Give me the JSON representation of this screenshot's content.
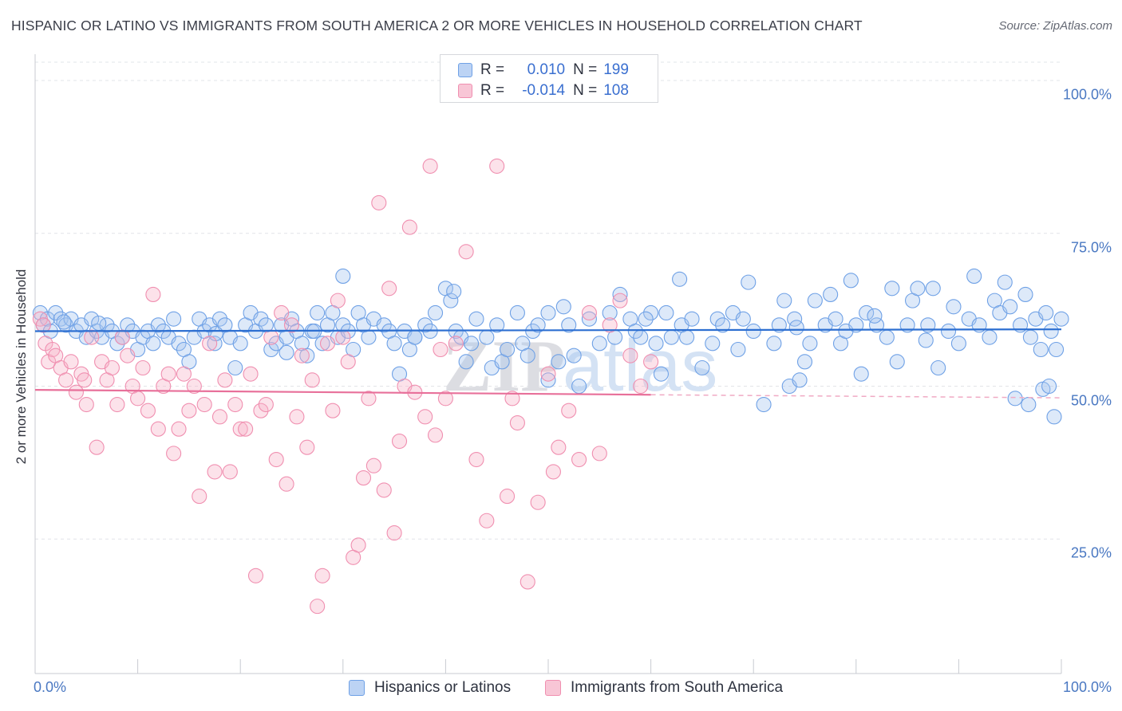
{
  "title": "HISPANIC OR LATINO VS IMMIGRANTS FROM SOUTH AMERICA 2 OR MORE VEHICLES IN HOUSEHOLD CORRELATION CHART",
  "source": "Source: ZipAtlas.com",
  "watermark": "ZIPatlas",
  "legend": {
    "rows": [
      {
        "r_label": "R =",
        "r_value": "0.010",
        "n_label": "N =",
        "n_value": "199",
        "color": "#6fa1e6"
      },
      {
        "r_label": "R =",
        "r_value": "-0.014",
        "n_label": "N =",
        "n_value": "108",
        "color": "#f08fb0"
      }
    ]
  },
  "bottom_legend": [
    "Hispanics or Latinos",
    "Immigrants from South America"
  ],
  "chart_data": {
    "type": "scatter",
    "title": "HISPANIC OR LATINO VS IMMIGRANTS FROM SOUTH AMERICA 2 OR MORE VEHICLES IN HOUSEHOLD CORRELATION CHART",
    "xlabel": "",
    "ylabel": "2 or more Vehicles in Household",
    "xlim": [
      0,
      100
    ],
    "ylim": [
      3,
      103
    ],
    "x_tick_labels": [
      "0.0%",
      "100.0%"
    ],
    "y_tick_labels": [
      "100.0%",
      "75.0%",
      "50.0%",
      "25.0%"
    ],
    "y_ticks": [
      100,
      75,
      50,
      25
    ],
    "grid": "horizontal dashed",
    "legend_position": "top-center",
    "series": [
      {
        "name": "Hispanics or Latinos",
        "color": "#6fa1e6",
        "trend": {
          "x0": 0,
          "y0": 59.0,
          "x1": 100,
          "y1": 59.3,
          "dashed_from": null
        },
        "points": [
          [
            0.5,
            62
          ],
          [
            0.8,
            60
          ],
          [
            1.2,
            61
          ],
          [
            1.5,
            59
          ],
          [
            2.0,
            62
          ],
          [
            2.5,
            61
          ],
          [
            3,
            60
          ],
          [
            3.5,
            61
          ],
          [
            4,
            59
          ],
          [
            4.5,
            60
          ],
          [
            5,
            58
          ],
          [
            5.5,
            61
          ],
          [
            6,
            59
          ],
          [
            6.5,
            58
          ],
          [
            7,
            60
          ],
          [
            7.5,
            59
          ],
          [
            8,
            57
          ],
          [
            8.5,
            58
          ],
          [
            9,
            60
          ],
          [
            9.5,
            59
          ],
          [
            10,
            56
          ],
          [
            10.5,
            58
          ],
          [
            11,
            59
          ],
          [
            11.5,
            57
          ],
          [
            12,
            60
          ],
          [
            12.5,
            59
          ],
          [
            13,
            58
          ],
          [
            13.5,
            61
          ],
          [
            14,
            57
          ],
          [
            14.5,
            56
          ],
          [
            15,
            54
          ],
          [
            15.5,
            58
          ],
          [
            16,
            61
          ],
          [
            16.5,
            59
          ],
          [
            17,
            60
          ],
          [
            17.5,
            57
          ],
          [
            18,
            61
          ],
          [
            18.5,
            60
          ],
          [
            19,
            58
          ],
          [
            19.5,
            53
          ],
          [
            20,
            57
          ],
          [
            20.5,
            60
          ],
          [
            21,
            62
          ],
          [
            21.5,
            59
          ],
          [
            22,
            61
          ],
          [
            22.5,
            60
          ],
          [
            23,
            56
          ],
          [
            23.5,
            57
          ],
          [
            24,
            60
          ],
          [
            24.5,
            58
          ],
          [
            25,
            61
          ],
          [
            25.5,
            59
          ],
          [
            26,
            57
          ],
          [
            26.5,
            55
          ],
          [
            27,
            59
          ],
          [
            27.5,
            62
          ],
          [
            28,
            57
          ],
          [
            28.5,
            60
          ],
          [
            29,
            62
          ],
          [
            29.5,
            58
          ],
          [
            30,
            60
          ],
          [
            30.5,
            59
          ],
          [
            31,
            56
          ],
          [
            31.5,
            62
          ],
          [
            32,
            60
          ],
          [
            32.5,
            58
          ],
          [
            33,
            61
          ],
          [
            34,
            60
          ],
          [
            34.5,
            59
          ],
          [
            35,
            57
          ],
          [
            35.5,
            52
          ],
          [
            36,
            59
          ],
          [
            36.5,
            56
          ],
          [
            37,
            58
          ],
          [
            38,
            60
          ],
          [
            38.5,
            59
          ],
          [
            39,
            62
          ],
          [
            40,
            66
          ],
          [
            40.5,
            64
          ],
          [
            41,
            59
          ],
          [
            41.5,
            58
          ],
          [
            42,
            54
          ],
          [
            42.5,
            57
          ],
          [
            43,
            61
          ],
          [
            44,
            58
          ],
          [
            44.5,
            53
          ],
          [
            45,
            60
          ],
          [
            45.5,
            54
          ],
          [
            46,
            56
          ],
          [
            47,
            62
          ],
          [
            47.5,
            57
          ],
          [
            48,
            55
          ],
          [
            48.5,
            59
          ],
          [
            49,
            60
          ],
          [
            50,
            62
          ],
          [
            51,
            54
          ],
          [
            51.5,
            63
          ],
          [
            52,
            60
          ],
          [
            52.5,
            55
          ],
          [
            53,
            50
          ],
          [
            54,
            61
          ],
          [
            55,
            57
          ],
          [
            56,
            62
          ],
          [
            56.5,
            58
          ],
          [
            57,
            65
          ],
          [
            58,
            61
          ],
          [
            58.5,
            59
          ],
          [
            59,
            58
          ],
          [
            60,
            62
          ],
          [
            60.5,
            57
          ],
          [
            61,
            52
          ],
          [
            61.5,
            62
          ],
          [
            62,
            58
          ],
          [
            63,
            60
          ],
          [
            63.5,
            58
          ],
          [
            64,
            61
          ],
          [
            65,
            53
          ],
          [
            66,
            57
          ],
          [
            66.5,
            61
          ],
          [
            67,
            60
          ],
          [
            68,
            62
          ],
          [
            68.5,
            56
          ],
          [
            69,
            61
          ],
          [
            70,
            59
          ],
          [
            71,
            47
          ],
          [
            72,
            57
          ],
          [
            72.5,
            60
          ],
          [
            73,
            64
          ],
          [
            73.5,
            50
          ],
          [
            74,
            61
          ],
          [
            74.5,
            51
          ],
          [
            75,
            54
          ],
          [
            75.5,
            57
          ],
          [
            76,
            64
          ],
          [
            77,
            60
          ],
          [
            77.5,
            65
          ],
          [
            78,
            61
          ],
          [
            78.5,
            57
          ],
          [
            79,
            59
          ],
          [
            80,
            60
          ],
          [
            80.5,
            52
          ],
          [
            81,
            62
          ],
          [
            82,
            60
          ],
          [
            83,
            58
          ],
          [
            83.5,
            66
          ],
          [
            84,
            54
          ],
          [
            85,
            60
          ],
          [
            85.5,
            64
          ],
          [
            86,
            66
          ],
          [
            87,
            60
          ],
          [
            87.5,
            66
          ],
          [
            88,
            53
          ],
          [
            89,
            59
          ],
          [
            89.5,
            63
          ],
          [
            90,
            57
          ],
          [
            91,
            61
          ],
          [
            91.5,
            68
          ],
          [
            92,
            60
          ],
          [
            93,
            58
          ],
          [
            93.5,
            64
          ],
          [
            94,
            62
          ],
          [
            94.5,
            67
          ],
          [
            95,
            63
          ],
          [
            96,
            60
          ],
          [
            96.5,
            65
          ],
          [
            97,
            58
          ],
          [
            97.5,
            61
          ],
          [
            98,
            56
          ],
          [
            98.5,
            62
          ],
          [
            99,
            59
          ],
          [
            99.5,
            56
          ],
          [
            100,
            61
          ],
          [
            50,
            51
          ],
          [
            30,
            68
          ],
          [
            37,
            58
          ],
          [
            40.8,
            65.5
          ],
          [
            62.8,
            67.5
          ],
          [
            69.5,
            67
          ],
          [
            79.5,
            67.3
          ],
          [
            86.8,
            57.5
          ],
          [
            95.5,
            48
          ],
          [
            96.8,
            47
          ],
          [
            98.2,
            49.5
          ],
          [
            98.8,
            50
          ],
          [
            99.3,
            45
          ],
          [
            74.2,
            59.6
          ],
          [
            81.8,
            61.5
          ],
          [
            27.2,
            59
          ],
          [
            24.5,
            55.5
          ],
          [
            59.5,
            61
          ],
          [
            17.6,
            58.6
          ],
          [
            2.8,
            60.5
          ],
          [
            6.2,
            60.3
          ]
        ]
      },
      {
        "name": "Immigrants from South America",
        "color": "#f08fb0",
        "trend": {
          "x0": 0,
          "y0": 49.4,
          "x1": 60,
          "y1": 48.6,
          "dashed_from": 60,
          "dashed_to_x": 100,
          "dashed_to_y": 48.1
        },
        "points": [
          [
            0.5,
            61
          ],
          [
            0.8,
            60
          ],
          [
            1,
            57
          ],
          [
            1.3,
            54
          ],
          [
            1.7,
            56
          ],
          [
            2,
            55
          ],
          [
            2.5,
            53
          ],
          [
            3,
            51
          ],
          [
            3.5,
            54
          ],
          [
            4,
            49
          ],
          [
            4.5,
            52
          ],
          [
            4.8,
            51
          ],
          [
            5,
            47
          ],
          [
            5.5,
            58
          ],
          [
            6,
            40
          ],
          [
            6.5,
            54
          ],
          [
            7,
            51
          ],
          [
            7.5,
            53
          ],
          [
            8,
            47
          ],
          [
            8.5,
            58
          ],
          [
            9,
            55
          ],
          [
            9.5,
            50
          ],
          [
            10,
            48
          ],
          [
            10.5,
            53
          ],
          [
            11,
            46
          ],
          [
            11.5,
            65
          ],
          [
            12,
            43
          ],
          [
            12.5,
            50
          ],
          [
            13,
            52
          ],
          [
            13.5,
            39
          ],
          [
            14,
            43
          ],
          [
            14.5,
            52
          ],
          [
            15,
            46
          ],
          [
            15.5,
            50
          ],
          [
            16,
            32
          ],
          [
            16.5,
            47
          ],
          [
            17,
            57
          ],
          [
            17.5,
            36
          ],
          [
            18,
            45
          ],
          [
            18.5,
            51
          ],
          [
            19,
            36
          ],
          [
            19.5,
            47
          ],
          [
            20,
            43
          ],
          [
            20.5,
            43
          ],
          [
            21,
            52
          ],
          [
            21.5,
            19
          ],
          [
            22,
            46
          ],
          [
            22.5,
            47
          ],
          [
            23,
            58
          ],
          [
            23.5,
            38
          ],
          [
            24,
            62
          ],
          [
            24.5,
            34
          ],
          [
            25,
            60
          ],
          [
            25.5,
            45
          ],
          [
            26,
            55
          ],
          [
            26.5,
            40
          ],
          [
            27,
            51
          ],
          [
            27.5,
            14
          ],
          [
            28,
            19
          ],
          [
            28.5,
            57
          ],
          [
            29,
            46
          ],
          [
            29.5,
            64
          ],
          [
            30,
            58
          ],
          [
            30.5,
            54
          ],
          [
            31,
            22
          ],
          [
            31.5,
            24
          ],
          [
            32,
            35
          ],
          [
            32.5,
            48
          ],
          [
            33,
            37
          ],
          [
            33.5,
            80
          ],
          [
            34,
            33
          ],
          [
            34.5,
            66
          ],
          [
            35,
            26
          ],
          [
            35.5,
            41
          ],
          [
            36,
            50
          ],
          [
            36.5,
            76
          ],
          [
            37,
            49
          ],
          [
            38,
            45
          ],
          [
            38.5,
            86
          ],
          [
            39,
            42
          ],
          [
            39.5,
            56
          ],
          [
            40,
            48
          ],
          [
            41,
            57
          ],
          [
            42,
            72
          ],
          [
            43,
            38
          ],
          [
            44,
            28
          ],
          [
            45,
            86
          ],
          [
            46,
            32
          ],
          [
            46.5,
            48
          ],
          [
            47,
            44
          ],
          [
            48,
            18
          ],
          [
            49,
            31
          ],
          [
            50,
            52
          ],
          [
            50.5,
            36
          ],
          [
            51,
            40
          ],
          [
            52,
            46
          ],
          [
            53,
            38
          ],
          [
            54,
            62
          ],
          [
            55,
            39
          ],
          [
            56,
            60
          ],
          [
            57,
            64
          ],
          [
            58,
            55
          ],
          [
            59,
            50
          ],
          [
            60,
            54
          ]
        ]
      }
    ]
  }
}
